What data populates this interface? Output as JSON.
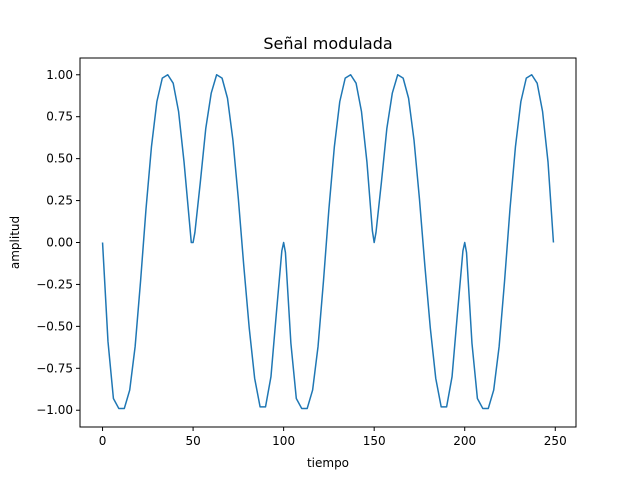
{
  "chart_data": {
    "type": "line",
    "title": "Señal modulada",
    "xlabel": "tiempo",
    "ylabel": "amplitud",
    "xlim": [
      -12.45,
      261.45
    ],
    "ylim": [
      -1.1,
      1.1
    ],
    "xticks": [
      0,
      50,
      100,
      150,
      200,
      250
    ],
    "yticks": [
      -1.0,
      -0.75,
      -0.5,
      -0.25,
      0.0,
      0.25,
      0.5,
      0.75,
      1.0
    ],
    "ytick_labels": [
      "−1.00",
      "−0.75",
      "−0.50",
      "−0.25",
      "0.00",
      "0.25",
      "0.50",
      "0.75",
      "1.00"
    ],
    "grid": false,
    "series": [
      {
        "color": "#1f77b4",
        "x": [
          0,
          3,
          6,
          9,
          12,
          15,
          18,
          21,
          24,
          27,
          30,
          33,
          36,
          39,
          42,
          45,
          48,
          49,
          50,
          51,
          54,
          57,
          60,
          63,
          66,
          69,
          72,
          75,
          78,
          81,
          84,
          87,
          90,
          93,
          96,
          99,
          100,
          101,
          104,
          107,
          110,
          113,
          116,
          119,
          122,
          125,
          128,
          131,
          134,
          137,
          140,
          143,
          146,
          149,
          150,
          151,
          154,
          157,
          160,
          163,
          166,
          169,
          172,
          175,
          178,
          181,
          184,
          187,
          190,
          193,
          196,
          199,
          200,
          201,
          204,
          207,
          210,
          213,
          216,
          219,
          222,
          225,
          228,
          231,
          234,
          237,
          240,
          243,
          246,
          249
        ],
        "y": [
          0.0,
          -0.59,
          -0.93,
          -0.99,
          -0.99,
          -0.88,
          -0.62,
          -0.23,
          0.2,
          0.57,
          0.84,
          0.98,
          1.0,
          0.95,
          0.78,
          0.48,
          0.12,
          0.0,
          0.0,
          0.06,
          0.36,
          0.68,
          0.89,
          1.0,
          0.98,
          0.86,
          0.61,
          0.26,
          -0.14,
          -0.51,
          -0.81,
          -0.98,
          -0.98,
          -0.8,
          -0.42,
          -0.05,
          0.0,
          -0.06,
          -0.6,
          -0.93,
          -0.99,
          -0.99,
          -0.88,
          -0.62,
          -0.23,
          0.2,
          0.57,
          0.84,
          0.98,
          1.0,
          0.95,
          0.78,
          0.48,
          0.07,
          0.0,
          0.06,
          0.36,
          0.68,
          0.89,
          1.0,
          0.98,
          0.86,
          0.61,
          0.26,
          -0.14,
          -0.51,
          -0.81,
          -0.98,
          -0.98,
          -0.8,
          -0.42,
          -0.05,
          0.0,
          -0.06,
          -0.6,
          -0.93,
          -0.99,
          -0.99,
          -0.88,
          -0.62,
          -0.23,
          0.2,
          0.57,
          0.84,
          0.98,
          1.0,
          0.95,
          0.78,
          0.48,
          0.0
        ]
      }
    ]
  }
}
